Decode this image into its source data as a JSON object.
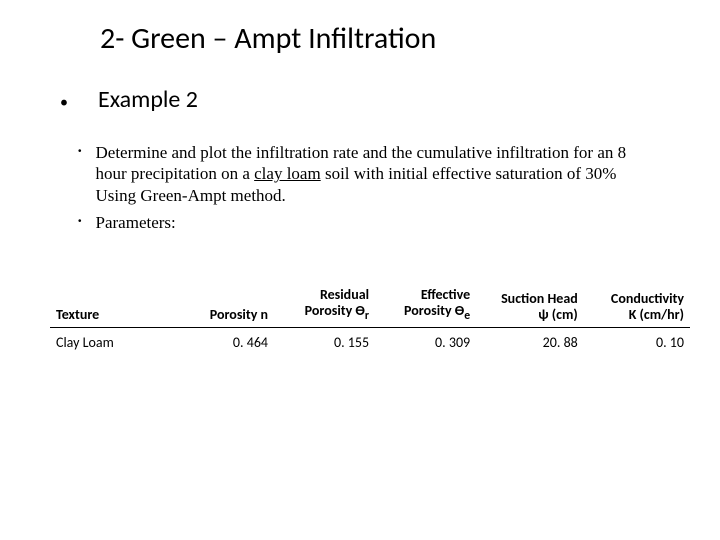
{
  "title": "2- Green – Ampt Infiltration",
  "subheading": "Example 2",
  "body": {
    "item1_pre": "Determine and plot the infiltration rate and the cumulative infiltration for an 8 hour precipitation on a ",
    "item1_u": "clay loam",
    "item1_post": " soil with initial effective saturation of 30% Using Green-Ampt method.",
    "item2": "Parameters:"
  },
  "table": {
    "headers": {
      "c0": "Texture",
      "c1": "Porosity n",
      "c2_l1": "Residual",
      "c2_l2": "Porosity Ө",
      "c2_sub": "r",
      "c3_l1": "Effective",
      "c3_l2": "Porosity Ө",
      "c3_sub": "e",
      "c4_l1": "Suction Head",
      "c4_l2": "ψ (cm)",
      "c5_l1": "Conductivity",
      "c5_l2": "K (cm/hr)"
    },
    "row": {
      "c0": "Clay Loam",
      "c1": "0. 464",
      "c2": "0. 155",
      "c3": "0. 309",
      "c4": "20. 88",
      "c5": "0. 10"
    }
  }
}
